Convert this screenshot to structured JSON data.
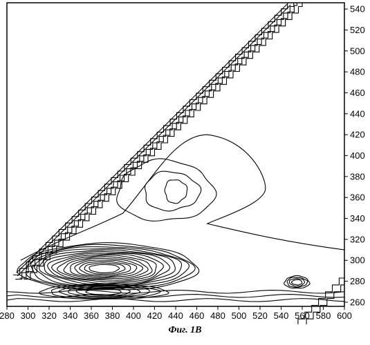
{
  "caption": "Фиг. 1B",
  "chart_data": {
    "type": "contour",
    "title": "",
    "xlabel": "",
    "ylabel": "",
    "xlim": [
      280,
      600
    ],
    "ylim": [
      256,
      546
    ],
    "x_ticks": [
      280,
      300,
      320,
      340,
      360,
      380,
      400,
      420,
      440,
      460,
      480,
      500,
      520,
      540,
      560,
      580,
      600
    ],
    "y_ticks": [
      260,
      280,
      300,
      320,
      340,
      360,
      380,
      400,
      420,
      440,
      460,
      480,
      500,
      520,
      540
    ],
    "y_axis_side": "right",
    "grid": false,
    "legend": "none",
    "features": [
      {
        "name": "Rayleigh scatter diagonal band",
        "x_range": [
          288,
          552
        ],
        "y_range": [
          282,
          546
        ]
      },
      {
        "name": "peak A",
        "center": [
          435,
          365
        ],
        "levels": 3
      },
      {
        "name": "peak B",
        "center": [
          372,
          293
        ],
        "levels": 15
      },
      {
        "name": "peak C",
        "center": [
          372,
          272
        ],
        "levels": 6
      },
      {
        "name": "second-order scatter",
        "center": [
          555,
          279
        ],
        "levels": 4
      }
    ],
    "line_color": "#000000"
  }
}
